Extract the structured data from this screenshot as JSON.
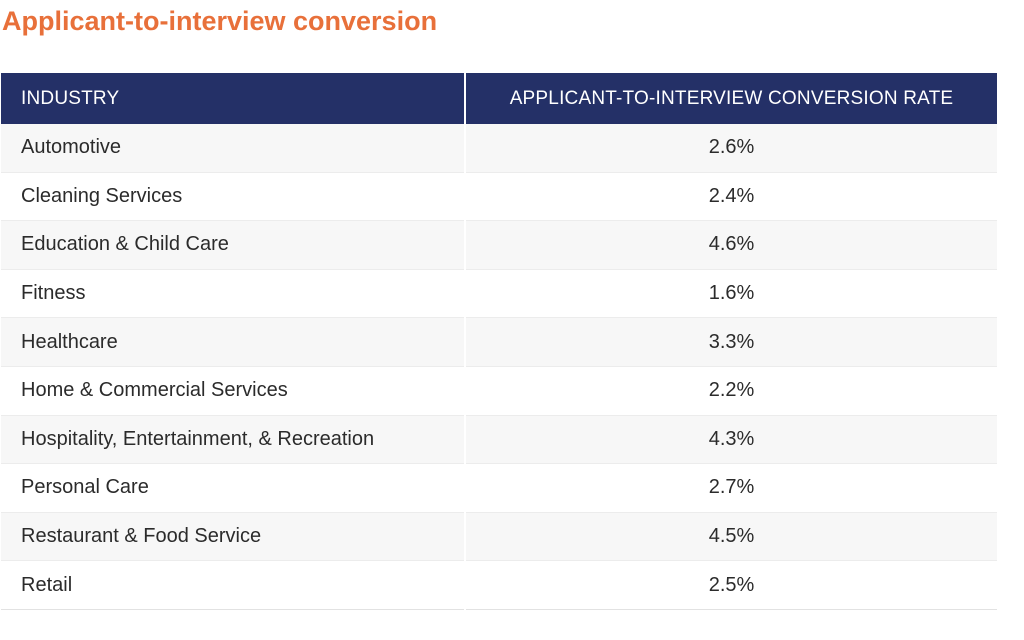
{
  "title": "Applicant-to-interview conversion",
  "chart_data": {
    "type": "table",
    "title": "Applicant-to-interview conversion",
    "columns": [
      "INDUSTRY",
      "APPLICANT-TO-INTERVIEW CONVERSION RATE"
    ],
    "rows": [
      {
        "industry": "Automotive",
        "rate": "2.6%"
      },
      {
        "industry": "Cleaning Services",
        "rate": "2.4%"
      },
      {
        "industry": "Education & Child Care",
        "rate": "4.6%"
      },
      {
        "industry": "Fitness",
        "rate": "1.6%"
      },
      {
        "industry": "Healthcare",
        "rate": "3.3%"
      },
      {
        "industry": "Home & Commercial Services",
        "rate": "2.2%"
      },
      {
        "industry": "Hospitality, Entertainment, & Recreation",
        "rate": "4.3%"
      },
      {
        "industry": "Personal Care",
        "rate": "2.7%"
      },
      {
        "industry": "Restaurant & Food Service",
        "rate": "4.5%"
      },
      {
        "industry": "Retail",
        "rate": "2.5%"
      }
    ]
  },
  "colors": {
    "title": "#e8703a",
    "header_bg": "#243067",
    "header_text": "#ffffff",
    "row_alt": "#f7f7f7"
  }
}
